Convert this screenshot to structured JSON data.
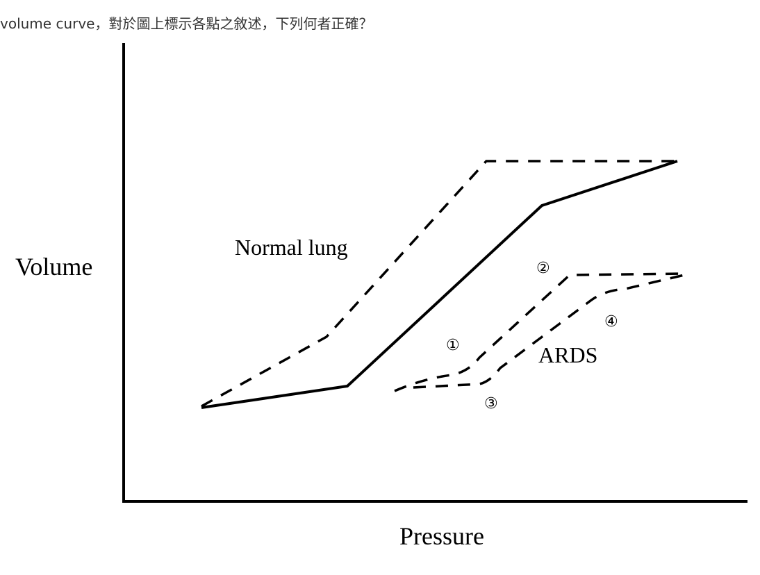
{
  "question": {
    "text": "volume curve，對於圖上標示各點之敘述，下列何者正確？"
  },
  "diagram": {
    "y_axis_label": "Volume",
    "x_axis_label": "Pressure",
    "curve_labels": [
      "Normal lung",
      "ARDS"
    ],
    "point_labels": [
      "①",
      "②",
      "③",
      "④"
    ]
  }
}
